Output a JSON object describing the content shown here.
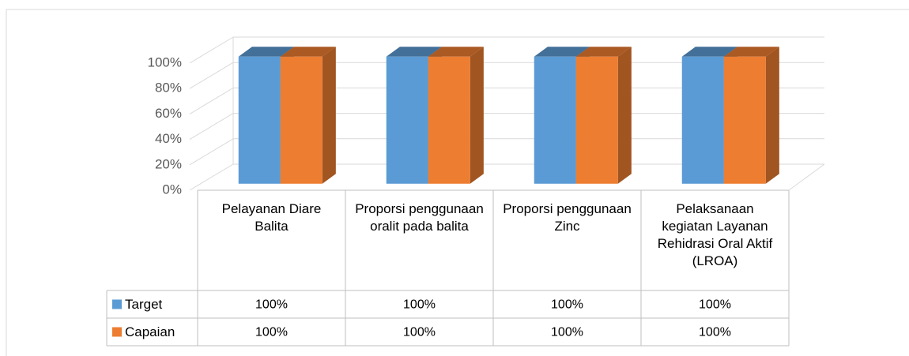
{
  "chart_data": {
    "type": "bar3d",
    "categories": [
      "Pelayanan Diare Balita",
      "Proporsi penggunaan oralit pada balita",
      "Proporsi penggunaan Zinc",
      "Pelaksanaan kegiatan Layanan Rehidrasi Oral Aktif (LROA)"
    ],
    "series": [
      {
        "name": "Target",
        "color": "#5b9bd5",
        "values": [
          100,
          100,
          100,
          100
        ],
        "value_labels": [
          "100%",
          "100%",
          "100%",
          "100%"
        ]
      },
      {
        "name": "Capaian",
        "color": "#ed7d31",
        "values": [
          100,
          100,
          100,
          100
        ],
        "value_labels": [
          "100%",
          "100%",
          "100%",
          "100%"
        ]
      }
    ],
    "ylim": [
      0,
      100
    ],
    "yticks": [
      {
        "value": 0,
        "label": "0%"
      },
      {
        "value": 20,
        "label": "20%"
      },
      {
        "value": 40,
        "label": "40%"
      },
      {
        "value": 60,
        "label": "60%"
      },
      {
        "value": 80,
        "label": "80%"
      },
      {
        "value": 100,
        "label": "100%"
      }
    ],
    "grid": true
  }
}
